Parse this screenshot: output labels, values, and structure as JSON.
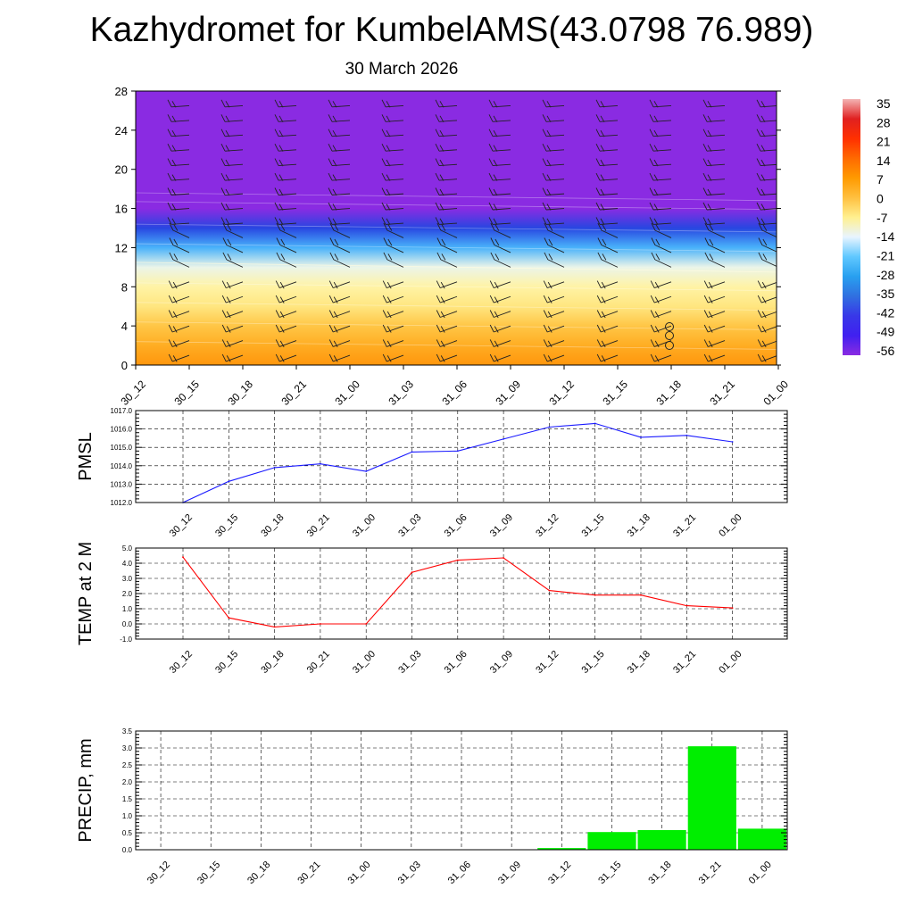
{
  "title": "Kazhydromet for KumbelAMS(43.0798 76.989)",
  "subtitle": "30 March 2026",
  "time_labels": [
    "30_12",
    "30_15",
    "30_18",
    "30_21",
    "31_00",
    "31_03",
    "31_06",
    "31_09",
    "31_12",
    "31_15",
    "31_18",
    "31_21",
    "01_00"
  ],
  "colors": {
    "pmsl_line": "#1a1aff",
    "temp_line": "#ff0000",
    "precip_bar": "#00ee00",
    "grid": "#000000"
  },
  "chart_data": [
    {
      "id": "upper-air",
      "type": "heatmap",
      "description_variable": "temperature (filled contours) with wind barbs",
      "ylim": [
        0,
        28
      ],
      "yticks": [
        "0",
        "4",
        "8",
        "12",
        "16",
        "20",
        "24",
        "28"
      ],
      "categories": [
        "30_12",
        "30_15",
        "30_18",
        "30_21",
        "31_00",
        "31_03",
        "31_06",
        "31_09",
        "31_12",
        "31_15",
        "31_18",
        "31_21",
        "01_00"
      ],
      "colorbar": {
        "labels": [
          "35",
          "28",
          "21",
          "14",
          "7",
          "0",
          "-7",
          "-14",
          "-21",
          "-28",
          "-35",
          "-42",
          "-49",
          "-56"
        ],
        "colors": [
          "#f3b3b3",
          "#e02020",
          "#ff3000",
          "#ff6a00",
          "#ff9a00",
          "#ffc040",
          "#fff090",
          "#e8f4ff",
          "#60c8ff",
          "#28a0f0",
          "#3070e0",
          "#3838e8",
          "#4020f0",
          "#8a2be2"
        ]
      },
      "temperature_profile_levels": [
        0,
        2,
        4,
        6,
        8,
        10,
        12,
        14,
        16,
        18,
        22,
        28
      ],
      "temperature_profile_values": [
        10,
        6,
        2,
        -3,
        -6,
        -12,
        -25,
        -40,
        -56,
        -56,
        -56,
        -56
      ],
      "freezing_level_start": 10.5,
      "freezing_level_end": 9.5
    },
    {
      "id": "pmsl",
      "type": "line",
      "ylabel": "PMSL",
      "categories": [
        "30_12",
        "30_15",
        "30_18",
        "30_21",
        "31_00",
        "31_03",
        "31_06",
        "31_09",
        "31_12",
        "31_15",
        "31_18",
        "31_21",
        "01_00"
      ],
      "values": [
        1012.0,
        1013.15,
        1013.9,
        1014.1,
        1013.7,
        1014.75,
        1014.8,
        1015.45,
        1016.1,
        1016.3,
        1015.55,
        1015.65,
        1015.3
      ],
      "ylim": [
        1012.0,
        1017.0
      ],
      "yticks": [
        "1012.0",
        "1013.0",
        "1014.0",
        "1015.0",
        "1016.0",
        "1017.0"
      ]
    },
    {
      "id": "temp2m",
      "type": "line",
      "ylabel": "TEMP at 2 M",
      "categories": [
        "30_12",
        "30_15",
        "30_18",
        "30_21",
        "31_00",
        "31_03",
        "31_06",
        "31_09",
        "31_12",
        "31_15",
        "31_18",
        "31_21",
        "01_00"
      ],
      "values": [
        4.4,
        0.4,
        -0.2,
        0.0,
        0.0,
        3.4,
        4.2,
        4.35,
        2.2,
        1.9,
        1.9,
        1.2,
        1.05
      ],
      "ylim": [
        -1.0,
        5.0
      ],
      "yticks": [
        "-1.0",
        "0.0",
        "1.0",
        "2.0",
        "3.0",
        "4.0",
        "5.0"
      ]
    },
    {
      "id": "precip",
      "type": "bar",
      "ylabel": "PRECIP, mm",
      "categories": [
        "30_12",
        "30_15",
        "30_18",
        "30_21",
        "31_00",
        "31_03",
        "31_06",
        "31_09",
        "31_12",
        "31_15",
        "31_18",
        "31_21",
        "01_00"
      ],
      "values": [
        0,
        0,
        0,
        0,
        0,
        0,
        0,
        0,
        0.05,
        0.52,
        0.58,
        3.05,
        0.62
      ],
      "ylim": [
        0.0,
        3.5
      ],
      "yticks": [
        "0.0",
        "0.5",
        "1.0",
        "1.5",
        "2.0",
        "2.5",
        "3.0",
        "3.5"
      ]
    }
  ]
}
